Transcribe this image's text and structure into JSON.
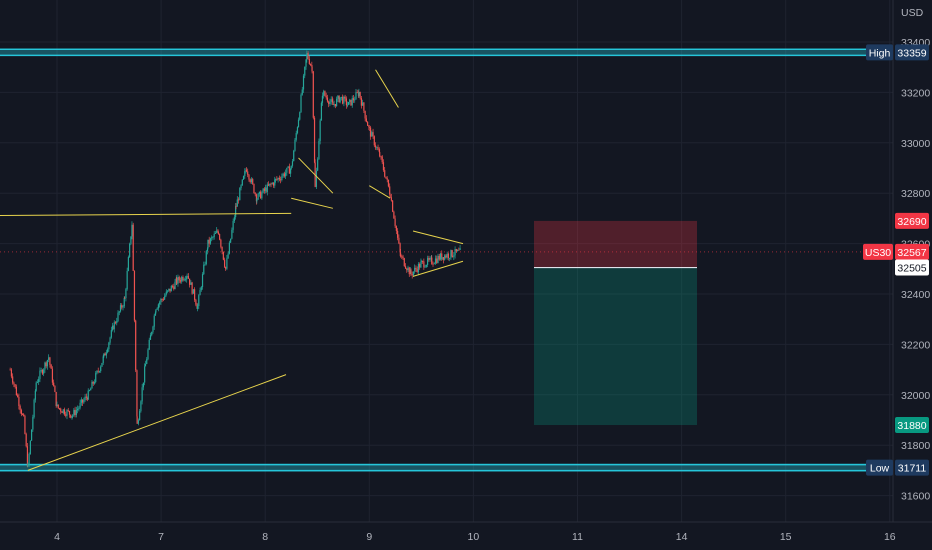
{
  "chart_data": {
    "type": "candlestick",
    "currency": "USD",
    "symbol": "US30",
    "x_ticks": [
      "4",
      "7",
      "8",
      "9",
      "10",
      "11",
      "14",
      "15",
      "16"
    ],
    "y_ticks": [
      33400,
      33200,
      33000,
      32800,
      32600,
      32400,
      32200,
      32000,
      31800,
      31600
    ],
    "ylim": [
      31500,
      33450
    ],
    "grid": true,
    "last_price": 32567,
    "high": {
      "label": "High",
      "value": 33359
    },
    "low": {
      "label": "Low",
      "value": 31711
    },
    "entry": 32505,
    "stop_loss": 32690,
    "take_profit": 31880,
    "price_path": [
      [
        3.55,
        32100
      ],
      [
        3.68,
        31900
      ],
      [
        3.72,
        31711
      ],
      [
        3.8,
        32050
      ],
      [
        3.92,
        32150
      ],
      [
        4.0,
        31950
      ],
      [
        4.15,
        31920
      ],
      [
        4.3,
        32000
      ],
      [
        4.45,
        32150
      ],
      [
        4.55,
        32280
      ],
      [
        4.65,
        32380
      ],
      [
        4.72,
        32680
      ],
      [
        4.77,
        31880
      ],
      [
        4.85,
        32120
      ],
      [
        4.95,
        32350
      ],
      [
        5.05,
        32400
      ],
      [
        5.15,
        32450
      ],
      [
        5.25,
        32480
      ],
      [
        5.35,
        32350
      ],
      [
        5.45,
        32600
      ],
      [
        5.55,
        32650
      ],
      [
        5.62,
        32500
      ],
      [
        5.72,
        32750
      ],
      [
        5.82,
        32900
      ],
      [
        5.92,
        32780
      ],
      [
        6.02,
        32820
      ],
      [
        6.1,
        32850
      ],
      [
        6.25,
        32900
      ],
      [
        6.32,
        33100
      ],
      [
        6.4,
        33350
      ],
      [
        6.45,
        33300
      ],
      [
        6.48,
        32820
      ],
      [
        6.55,
        33200
      ],
      [
        6.65,
        33150
      ],
      [
        6.72,
        33180
      ],
      [
        6.8,
        33150
      ],
      [
        6.9,
        33200
      ],
      [
        7.0,
        33050
      ],
      [
        7.1,
        32950
      ],
      [
        7.2,
        32800
      ],
      [
        7.3,
        32550
      ],
      [
        7.4,
        32480
      ],
      [
        7.5,
        32520
      ],
      [
        7.6,
        32530
      ],
      [
        7.7,
        32550
      ],
      [
        7.8,
        32560
      ],
      [
        7.88,
        32567
      ]
    ],
    "annotations": [
      {
        "type": "trendline",
        "from": [
          3.72,
          31700
        ],
        "to": [
          6.2,
          32080
        ]
      },
      {
        "type": "trendline",
        "from": [
          3.0,
          32710
        ],
        "to": [
          6.25,
          32720
        ]
      },
      {
        "type": "trendline",
        "from": [
          6.25,
          32780
        ],
        "to": [
          6.65,
          32740
        ]
      },
      {
        "type": "trendline",
        "from": [
          6.32,
          32940
        ],
        "to": [
          6.65,
          32800
        ]
      },
      {
        "type": "trendline",
        "from": [
          7.0,
          32830
        ],
        "to": [
          7.2,
          32780
        ]
      },
      {
        "type": "trendline",
        "from": [
          7.06,
          33290
        ],
        "to": [
          7.28,
          33140
        ]
      },
      {
        "type": "trendline",
        "from": [
          7.42,
          32650
        ],
        "to": [
          7.9,
          32600
        ]
      },
      {
        "type": "trendline",
        "from": [
          7.42,
          32470
        ],
        "to": [
          7.9,
          32530
        ]
      }
    ]
  }
}
